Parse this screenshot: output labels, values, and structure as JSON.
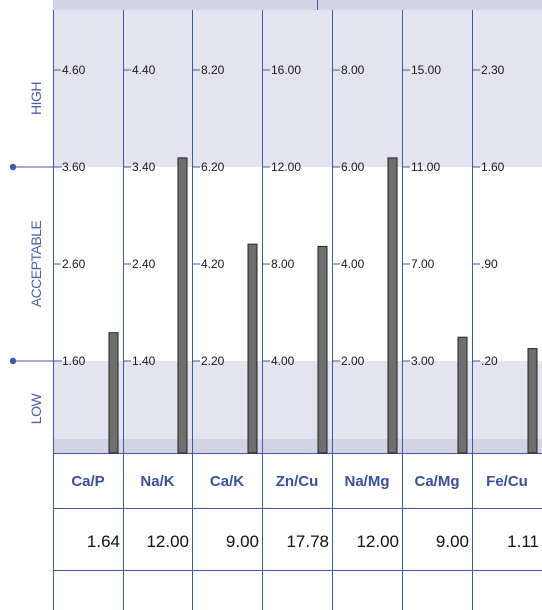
{
  "chart_data": {
    "type": "bar",
    "zones": [
      "HIGH",
      "ACCEPTABLE",
      "LOW"
    ],
    "categories": [
      "Ca/P",
      "Na/K",
      "Ca/K",
      "Zn/Cu",
      "Na/Mg",
      "Ca/Mg",
      "Fe/Cu"
    ],
    "values": [
      1.64,
      12.0,
      9.0,
      17.78,
      12.0,
      9.0,
      1.11
    ],
    "value_labels": [
      "1.64",
      "12.00",
      "9.00",
      "17.78",
      "12.00",
      "9.00",
      "1.11"
    ],
    "ticks": [
      [
        "4.60",
        "3.60",
        "2.60",
        "1.60"
      ],
      [
        "4.40",
        "3.40",
        "2.40",
        "1.40"
      ],
      [
        "8.20",
        "6.20",
        "4.20",
        "2.20"
      ],
      [
        "16.00",
        "12.00",
        "8.00",
        "4.00"
      ],
      [
        "8.00",
        "6.00",
        "4.00",
        "2.00"
      ],
      [
        "15.00",
        "11.00",
        "7.00",
        "3.00"
      ],
      [
        "2.30",
        "1.60",
        ".90",
        ".20"
      ]
    ],
    "bar_levels": [
      0.53,
      1.3,
      0.92,
      0.91,
      1.3,
      0.51,
      0.46
    ],
    "colors": {
      "high_zone": "#e4e4f1",
      "low_zone": "#e4e4f1",
      "acceptable_zone": "#ffffff",
      "zone_edge": "#d3d3e6",
      "grid": "#4456a8",
      "bar": "#6f6f6f",
      "bar_edge": "#222222",
      "zone_text": "#4d5fb0",
      "ratio_text": "#3a4f9e"
    }
  }
}
